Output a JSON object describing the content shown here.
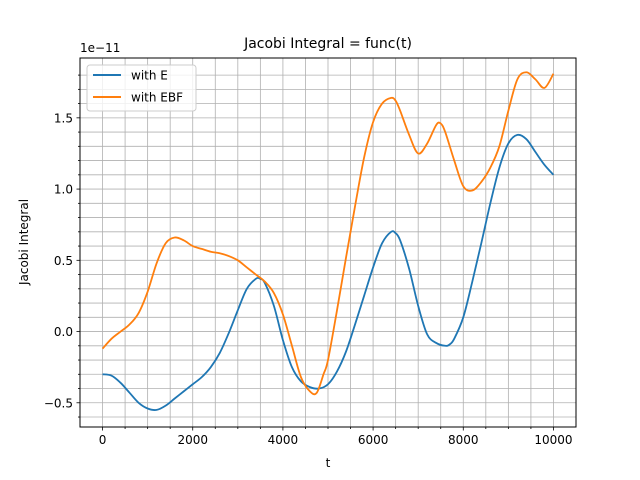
{
  "chart_data": {
    "type": "line",
    "title": "Jacobi Integral = func(t)",
    "xlabel": "t",
    "ylabel": "Jacobi Integral",
    "y_offset_label": "1e−11",
    "xlim": [
      -500,
      10500
    ],
    "ylim": [
      -0.67,
      1.92
    ],
    "x_ticks": [
      0,
      2000,
      4000,
      6000,
      8000,
      10000
    ],
    "x_tick_labels": [
      "0",
      "2000",
      "4000",
      "6000",
      "8000",
      "10000"
    ],
    "y_ticks": [
      -0.5,
      0.0,
      0.5,
      1.0,
      1.5
    ],
    "y_tick_labels": [
      "−0.5",
      "0.0",
      "0.5",
      "1.0",
      "1.5"
    ],
    "grid": "on (major and minor)",
    "legend_position": "top-left",
    "series": [
      {
        "name": "with E",
        "color": "#1f77b4",
        "x": [
          0,
          200,
          400,
          600,
          800,
          1000,
          1200,
          1400,
          1600,
          1800,
          2000,
          2200,
          2400,
          2600,
          2800,
          3000,
          3200,
          3400,
          3500,
          3600,
          3800,
          4000,
          4200,
          4400,
          4600,
          4800,
          5000,
          5200,
          5400,
          5600,
          5800,
          6000,
          6200,
          6400,
          6500,
          6600,
          6800,
          7000,
          7200,
          7400,
          7600,
          7700,
          7800,
          8000,
          8200,
          8400,
          8600,
          8800,
          9000,
          9200,
          9400,
          9600,
          9800,
          10000
        ],
        "y": [
          -0.3,
          -0.31,
          -0.36,
          -0.43,
          -0.5,
          -0.54,
          -0.55,
          -0.52,
          -0.47,
          -0.42,
          -0.37,
          -0.32,
          -0.25,
          -0.15,
          -0.01,
          0.15,
          0.3,
          0.37,
          0.37,
          0.34,
          0.18,
          -0.06,
          -0.25,
          -0.35,
          -0.39,
          -0.4,
          -0.37,
          -0.28,
          -0.14,
          0.05,
          0.25,
          0.45,
          0.62,
          0.7,
          0.69,
          0.64,
          0.44,
          0.18,
          -0.02,
          -0.08,
          -0.1,
          -0.09,
          -0.05,
          0.1,
          0.35,
          0.62,
          0.9,
          1.15,
          1.32,
          1.38,
          1.35,
          1.26,
          1.17,
          1.1
        ]
      },
      {
        "name": "with EBF",
        "color": "#ff7f0e",
        "x": [
          0,
          200,
          400,
          600,
          800,
          1000,
          1200,
          1400,
          1600,
          1800,
          2000,
          2200,
          2400,
          2600,
          2800,
          3000,
          3200,
          3400,
          3600,
          3800,
          4000,
          4200,
          4400,
          4600,
          4750,
          4900,
          5000,
          5200,
          5400,
          5600,
          5800,
          6000,
          6200,
          6400,
          6500,
          6600,
          6800,
          7000,
          7200,
          7400,
          7500,
          7600,
          7800,
          8000,
          8200,
          8400,
          8600,
          8800,
          9000,
          9200,
          9400,
          9600,
          9800,
          10000
        ],
        "y": [
          -0.12,
          -0.05,
          0.0,
          0.05,
          0.13,
          0.28,
          0.48,
          0.62,
          0.66,
          0.64,
          0.6,
          0.58,
          0.56,
          0.55,
          0.53,
          0.5,
          0.45,
          0.4,
          0.35,
          0.27,
          0.12,
          -0.1,
          -0.32,
          -0.42,
          -0.43,
          -0.3,
          -0.2,
          0.15,
          0.52,
          0.88,
          1.22,
          1.47,
          1.6,
          1.64,
          1.62,
          1.55,
          1.38,
          1.25,
          1.32,
          1.45,
          1.46,
          1.4,
          1.2,
          1.02,
          0.99,
          1.05,
          1.15,
          1.3,
          1.55,
          1.77,
          1.82,
          1.77,
          1.71,
          1.81
        ]
      }
    ]
  }
}
